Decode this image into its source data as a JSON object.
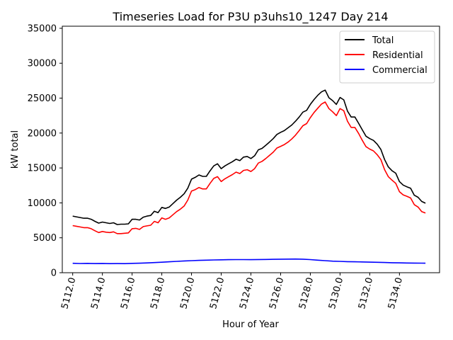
{
  "chart_data": {
    "type": "line",
    "title": "Timeseries Load for P3U p3uhs10_1247  Day 214",
    "xlabel": "Hour of Year",
    "ylabel": "kW total",
    "xlim": [
      5111.3,
      5136.7
    ],
    "ylim": [
      0,
      35300
    ],
    "x_ticks": [
      5112,
      5114,
      5116,
      5118,
      5120,
      5122,
      5124,
      5126,
      5128,
      5130,
      5132,
      5134
    ],
    "x_tick_labels": [
      "5112.0",
      "5114.0",
      "5116.0",
      "5118.0",
      "5120.0",
      "5122.0",
      "5124.0",
      "5126.0",
      "5128.0",
      "5130.0",
      "5132.0",
      "5134.0"
    ],
    "y_ticks": [
      0,
      5000,
      10000,
      15000,
      20000,
      25000,
      30000,
      35000
    ],
    "y_tick_labels": [
      "0",
      "5000",
      "10000",
      "15000",
      "20000",
      "25000",
      "30000",
      "35000"
    ],
    "legend_position": "upper right",
    "series": [
      {
        "name": "Total",
        "color": "#000000",
        "points": [
          [
            5112.0,
            8100
          ],
          [
            5112.25,
            8000
          ],
          [
            5112.5,
            7900
          ],
          [
            5112.75,
            7800
          ],
          [
            5113.0,
            7800
          ],
          [
            5113.25,
            7650
          ],
          [
            5113.5,
            7350
          ],
          [
            5113.75,
            7100
          ],
          [
            5114.0,
            7250
          ],
          [
            5114.25,
            7150
          ],
          [
            5114.5,
            7050
          ],
          [
            5114.75,
            7150
          ],
          [
            5115.0,
            6900
          ],
          [
            5115.25,
            6950
          ],
          [
            5115.5,
            6950
          ],
          [
            5115.75,
            7000
          ],
          [
            5116.0,
            7650
          ],
          [
            5116.25,
            7650
          ],
          [
            5116.5,
            7550
          ],
          [
            5116.75,
            7950
          ],
          [
            5117.0,
            8100
          ],
          [
            5117.25,
            8200
          ],
          [
            5117.5,
            8800
          ],
          [
            5117.75,
            8600
          ],
          [
            5118.0,
            9350
          ],
          [
            5118.25,
            9200
          ],
          [
            5118.5,
            9400
          ],
          [
            5118.75,
            9900
          ],
          [
            5119.0,
            10400
          ],
          [
            5119.25,
            10800
          ],
          [
            5119.5,
            11300
          ],
          [
            5119.75,
            12100
          ],
          [
            5120.0,
            13400
          ],
          [
            5120.25,
            13650
          ],
          [
            5120.5,
            14000
          ],
          [
            5120.75,
            13800
          ],
          [
            5121.0,
            13800
          ],
          [
            5121.25,
            14600
          ],
          [
            5121.5,
            15300
          ],
          [
            5121.75,
            15600
          ],
          [
            5122.0,
            14900
          ],
          [
            5122.25,
            15300
          ],
          [
            5122.5,
            15600
          ],
          [
            5122.75,
            15900
          ],
          [
            5123.0,
            16250
          ],
          [
            5123.25,
            16050
          ],
          [
            5123.5,
            16550
          ],
          [
            5123.75,
            16650
          ],
          [
            5124.0,
            16350
          ],
          [
            5124.25,
            16750
          ],
          [
            5124.5,
            17600
          ],
          [
            5124.75,
            17800
          ],
          [
            5125.0,
            18250
          ],
          [
            5125.25,
            18700
          ],
          [
            5125.5,
            19200
          ],
          [
            5125.75,
            19800
          ],
          [
            5126.0,
            20100
          ],
          [
            5126.25,
            20350
          ],
          [
            5126.5,
            20750
          ],
          [
            5126.75,
            21150
          ],
          [
            5127.0,
            21700
          ],
          [
            5127.25,
            22300
          ],
          [
            5127.5,
            23000
          ],
          [
            5127.75,
            23250
          ],
          [
            5128.0,
            24100
          ],
          [
            5128.25,
            24800
          ],
          [
            5128.5,
            25400
          ],
          [
            5128.75,
            25900
          ],
          [
            5129.0,
            26150
          ],
          [
            5129.25,
            25050
          ],
          [
            5129.5,
            24650
          ],
          [
            5129.75,
            24100
          ],
          [
            5130.0,
            25100
          ],
          [
            5130.25,
            24750
          ],
          [
            5130.5,
            23150
          ],
          [
            5130.75,
            22300
          ],
          [
            5131.0,
            22300
          ],
          [
            5131.25,
            21400
          ],
          [
            5131.5,
            20450
          ],
          [
            5131.75,
            19550
          ],
          [
            5132.0,
            19200
          ],
          [
            5132.25,
            18950
          ],
          [
            5132.5,
            18400
          ],
          [
            5132.75,
            17650
          ],
          [
            5133.0,
            16200
          ],
          [
            5133.25,
            15150
          ],
          [
            5133.5,
            14600
          ],
          [
            5133.75,
            14250
          ],
          [
            5134.0,
            13050
          ],
          [
            5134.25,
            12550
          ],
          [
            5134.5,
            12300
          ],
          [
            5134.75,
            12100
          ],
          [
            5135.0,
            11100
          ],
          [
            5135.25,
            10800
          ],
          [
            5135.5,
            10200
          ],
          [
            5135.75,
            9950
          ]
        ]
      },
      {
        "name": "Residential",
        "color": "#ff0000",
        "points": [
          [
            5112.0,
            6750
          ],
          [
            5112.25,
            6650
          ],
          [
            5112.5,
            6550
          ],
          [
            5112.75,
            6450
          ],
          [
            5113.0,
            6450
          ],
          [
            5113.25,
            6300
          ],
          [
            5113.5,
            6000
          ],
          [
            5113.75,
            5750
          ],
          [
            5114.0,
            5900
          ],
          [
            5114.25,
            5800
          ],
          [
            5114.5,
            5750
          ],
          [
            5114.75,
            5850
          ],
          [
            5115.0,
            5600
          ],
          [
            5115.25,
            5600
          ],
          [
            5115.5,
            5650
          ],
          [
            5115.75,
            5700
          ],
          [
            5116.0,
            6300
          ],
          [
            5116.25,
            6350
          ],
          [
            5116.5,
            6200
          ],
          [
            5116.75,
            6600
          ],
          [
            5117.0,
            6700
          ],
          [
            5117.25,
            6800
          ],
          [
            5117.5,
            7350
          ],
          [
            5117.75,
            7150
          ],
          [
            5118.0,
            7850
          ],
          [
            5118.25,
            7650
          ],
          [
            5118.5,
            7850
          ],
          [
            5118.75,
            8300
          ],
          [
            5119.0,
            8750
          ],
          [
            5119.25,
            9100
          ],
          [
            5119.5,
            9550
          ],
          [
            5119.75,
            10400
          ],
          [
            5120.0,
            11700
          ],
          [
            5120.25,
            11900
          ],
          [
            5120.5,
            12200
          ],
          [
            5120.75,
            12000
          ],
          [
            5121.0,
            12000
          ],
          [
            5121.25,
            12800
          ],
          [
            5121.5,
            13500
          ],
          [
            5121.75,
            13750
          ],
          [
            5122.0,
            13050
          ],
          [
            5122.25,
            13450
          ],
          [
            5122.5,
            13750
          ],
          [
            5122.75,
            14050
          ],
          [
            5123.0,
            14400
          ],
          [
            5123.25,
            14200
          ],
          [
            5123.5,
            14650
          ],
          [
            5123.75,
            14750
          ],
          [
            5124.0,
            14500
          ],
          [
            5124.25,
            14900
          ],
          [
            5124.5,
            15700
          ],
          [
            5124.75,
            15950
          ],
          [
            5125.0,
            16350
          ],
          [
            5125.25,
            16800
          ],
          [
            5125.5,
            17250
          ],
          [
            5125.75,
            17850
          ],
          [
            5126.0,
            18100
          ],
          [
            5126.25,
            18350
          ],
          [
            5126.5,
            18700
          ],
          [
            5126.75,
            19150
          ],
          [
            5127.0,
            19700
          ],
          [
            5127.25,
            20350
          ],
          [
            5127.5,
            21050
          ],
          [
            5127.75,
            21350
          ],
          [
            5128.0,
            22200
          ],
          [
            5128.25,
            22950
          ],
          [
            5128.5,
            23550
          ],
          [
            5128.75,
            24150
          ],
          [
            5129.0,
            24450
          ],
          [
            5129.25,
            23500
          ],
          [
            5129.5,
            23050
          ],
          [
            5129.75,
            22500
          ],
          [
            5130.0,
            23500
          ],
          [
            5130.25,
            23200
          ],
          [
            5130.5,
            21700
          ],
          [
            5130.75,
            20800
          ],
          [
            5131.0,
            20800
          ],
          [
            5131.25,
            19950
          ],
          [
            5131.5,
            18950
          ],
          [
            5131.75,
            18050
          ],
          [
            5132.0,
            17700
          ],
          [
            5132.25,
            17450
          ],
          [
            5132.5,
            16900
          ],
          [
            5132.75,
            16200
          ],
          [
            5133.0,
            14750
          ],
          [
            5133.25,
            13750
          ],
          [
            5133.5,
            13250
          ],
          [
            5133.75,
            12800
          ],
          [
            5134.0,
            11600
          ],
          [
            5134.25,
            11150
          ],
          [
            5134.5,
            10950
          ],
          [
            5134.75,
            10700
          ],
          [
            5135.0,
            9750
          ],
          [
            5135.25,
            9400
          ],
          [
            5135.5,
            8750
          ],
          [
            5135.75,
            8550
          ]
        ]
      },
      {
        "name": "Commercial",
        "color": "#0000ff",
        "points": [
          [
            5112.0,
            1350
          ],
          [
            5112.5,
            1320
          ],
          [
            5113.0,
            1340
          ],
          [
            5113.5,
            1310
          ],
          [
            5114.0,
            1330
          ],
          [
            5114.5,
            1300
          ],
          [
            5115.0,
            1310
          ],
          [
            5115.5,
            1300
          ],
          [
            5116.0,
            1340
          ],
          [
            5116.5,
            1360
          ],
          [
            5117.0,
            1400
          ],
          [
            5117.5,
            1450
          ],
          [
            5118.0,
            1500
          ],
          [
            5118.5,
            1560
          ],
          [
            5119.0,
            1620
          ],
          [
            5119.5,
            1680
          ],
          [
            5120.0,
            1720
          ],
          [
            5120.5,
            1760
          ],
          [
            5121.0,
            1800
          ],
          [
            5121.5,
            1830
          ],
          [
            5122.0,
            1850
          ],
          [
            5122.5,
            1870
          ],
          [
            5123.0,
            1880
          ],
          [
            5123.5,
            1880
          ],
          [
            5124.0,
            1870
          ],
          [
            5124.5,
            1890
          ],
          [
            5125.0,
            1900
          ],
          [
            5125.5,
            1920
          ],
          [
            5126.0,
            1940
          ],
          [
            5126.5,
            1950
          ],
          [
            5127.0,
            1960
          ],
          [
            5127.5,
            1940
          ],
          [
            5128.0,
            1880
          ],
          [
            5128.5,
            1800
          ],
          [
            5129.0,
            1720
          ],
          [
            5129.5,
            1650
          ],
          [
            5130.0,
            1620
          ],
          [
            5130.5,
            1580
          ],
          [
            5131.0,
            1560
          ],
          [
            5131.5,
            1540
          ],
          [
            5132.0,
            1510
          ],
          [
            5132.5,
            1490
          ],
          [
            5133.0,
            1460
          ],
          [
            5133.5,
            1430
          ],
          [
            5134.0,
            1410
          ],
          [
            5134.5,
            1390
          ],
          [
            5135.0,
            1380
          ],
          [
            5135.5,
            1370
          ],
          [
            5135.75,
            1360
          ]
        ]
      }
    ]
  }
}
